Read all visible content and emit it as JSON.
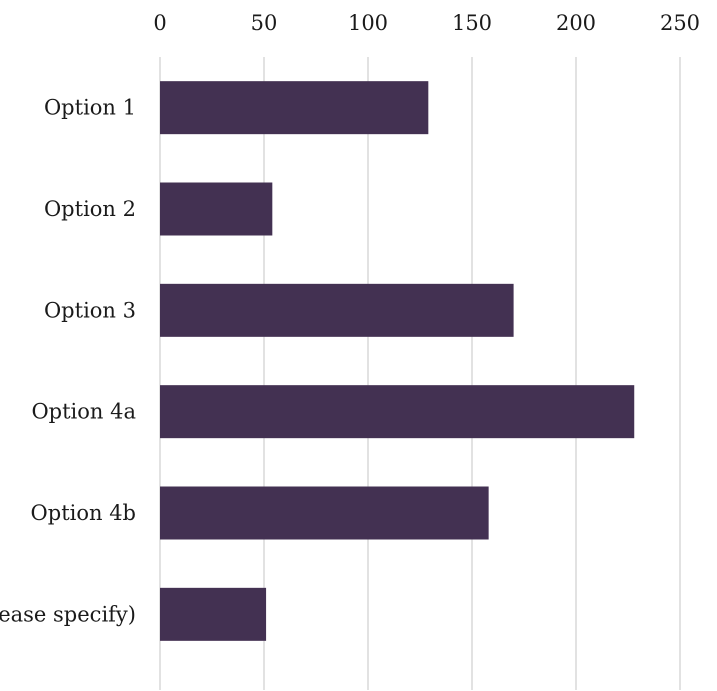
{
  "chart_data": {
    "type": "bar",
    "orientation": "horizontal",
    "categories": [
      "Option 1",
      "Option 2",
      "Option 3",
      "Option 4a",
      "Option 4b",
      "Other (please specify)"
    ],
    "values": [
      129,
      54,
      170,
      228,
      158,
      51
    ],
    "title": "",
    "xlabel": "",
    "ylabel": "",
    "xlim": [
      0,
      250
    ],
    "x_ticks": [
      "0",
      "50",
      "100",
      "150",
      "200",
      "250"
    ],
    "x_axis_position": "top",
    "grid": true,
    "legend": "none",
    "bar_color": "#433152",
    "gridline_color": "#d9d9d9"
  }
}
